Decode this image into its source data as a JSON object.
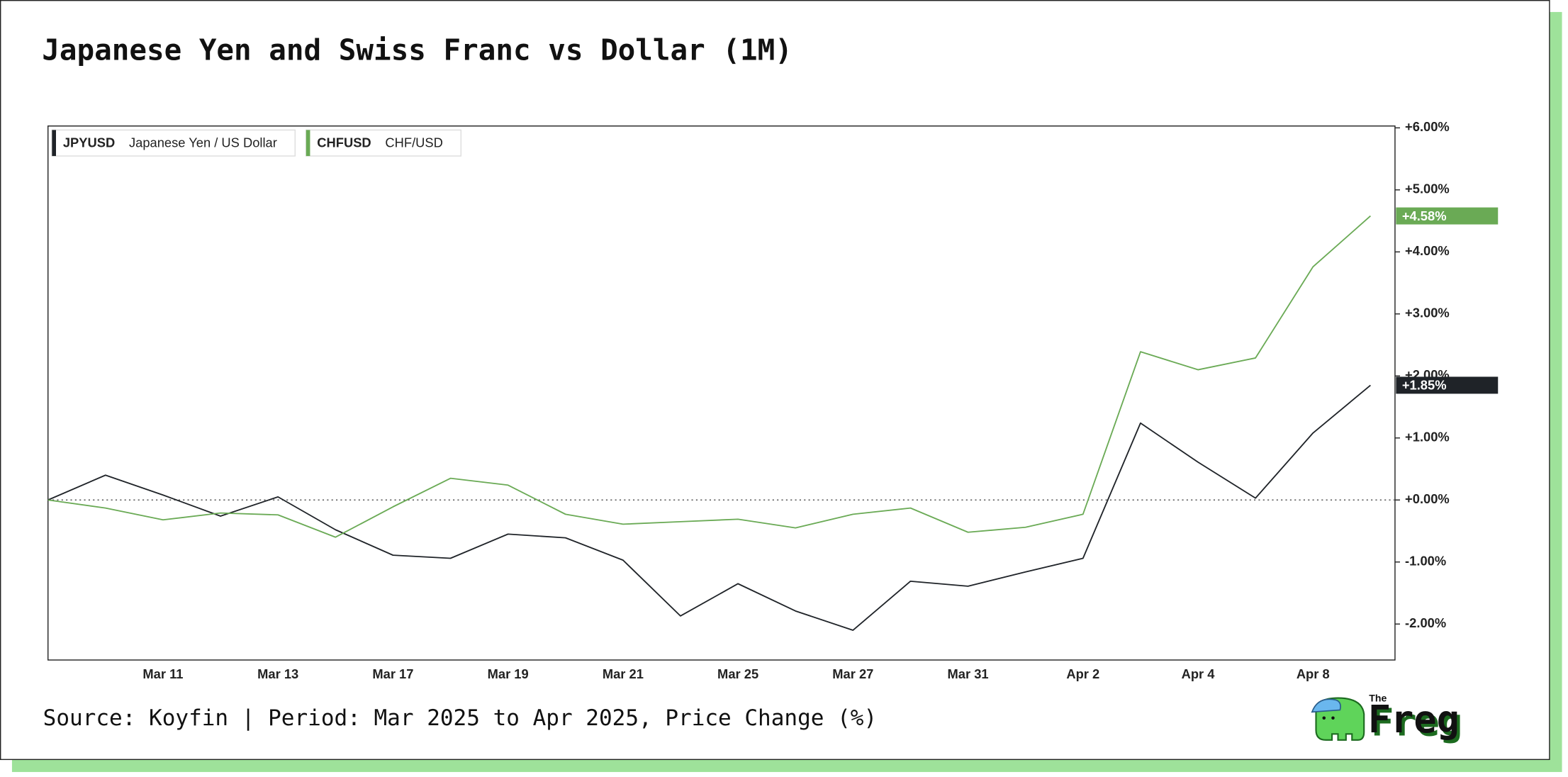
{
  "chart_data": {
    "type": "line",
    "title": "Japanese Yen and Swiss Franc vs Dollar (1M)",
    "source": "Source: Koyfin | Period: Mar 2025 to Apr 2025, Price Change (%)",
    "categories": [
      null,
      null,
      "Mar 11",
      null,
      "Mar 13",
      null,
      "Mar 17",
      null,
      "Mar 19",
      null,
      "Mar 21",
      null,
      "Mar 25",
      null,
      "Mar 27",
      null,
      "Mar 31",
      null,
      "Apr 2",
      null,
      "Apr 4",
      null,
      "Apr 8",
      null
    ],
    "series": [
      {
        "name": "JPYUSD",
        "description": "Japanese Yen / US Dollar",
        "color": "#1f2328",
        "values": [
          0,
          0.4,
          0.08,
          -0.26,
          0.05,
          -0.48,
          -0.89,
          -0.94,
          -0.55,
          -0.61,
          -0.97,
          -1.87,
          -1.35,
          -1.79,
          -2.1,
          -1.31,
          -1.39,
          -1.16,
          -0.94,
          1.24,
          0.61,
          0.03,
          1.08,
          1.85
        ],
        "value_labels": [
          null,
          null,
          null,
          null,
          null,
          null,
          null,
          null,
          null,
          null,
          null,
          null,
          null,
          null,
          null,
          null,
          null,
          null,
          null,
          null,
          null,
          null,
          null,
          "+1.85%"
        ]
      },
      {
        "name": "CHFUSD",
        "description": "CHF/USD",
        "color": "#6aaa55",
        "values": [
          0,
          -0.13,
          -0.32,
          -0.21,
          -0.24,
          -0.6,
          -0.11,
          0.35,
          0.24,
          -0.23,
          -0.39,
          -0.35,
          -0.31,
          -0.45,
          -0.23,
          -0.13,
          -0.52,
          -0.44,
          -0.23,
          2.39,
          2.1,
          2.29,
          3.76,
          4.58
        ],
        "value_labels": [
          null,
          null,
          null,
          null,
          null,
          null,
          null,
          null,
          null,
          null,
          null,
          null,
          null,
          null,
          null,
          null,
          null,
          null,
          null,
          null,
          null,
          null,
          null,
          "+4.58%"
        ]
      }
    ],
    "ylim": [
      -2.58,
      6.03
    ],
    "yticks": [
      {
        "value": -2,
        "label": "-2.00%"
      },
      {
        "value": -1,
        "label": "-1.00%"
      },
      {
        "value": 0,
        "label": "+0.00%"
      },
      {
        "value": 1,
        "label": "+1.00%"
      },
      {
        "value": 2,
        "label": "+2.00%"
      },
      {
        "value": 3,
        "label": "+3.00%"
      },
      {
        "value": 4,
        "label": "+4.00%"
      },
      {
        "value": 5,
        "label": "+5.00%"
      },
      {
        "value": 6,
        "label": "+6.00%"
      }
    ],
    "hline": 0,
    "y_axis_side": "right"
  },
  "logo": {
    "small": "The",
    "main": "Freg"
  }
}
